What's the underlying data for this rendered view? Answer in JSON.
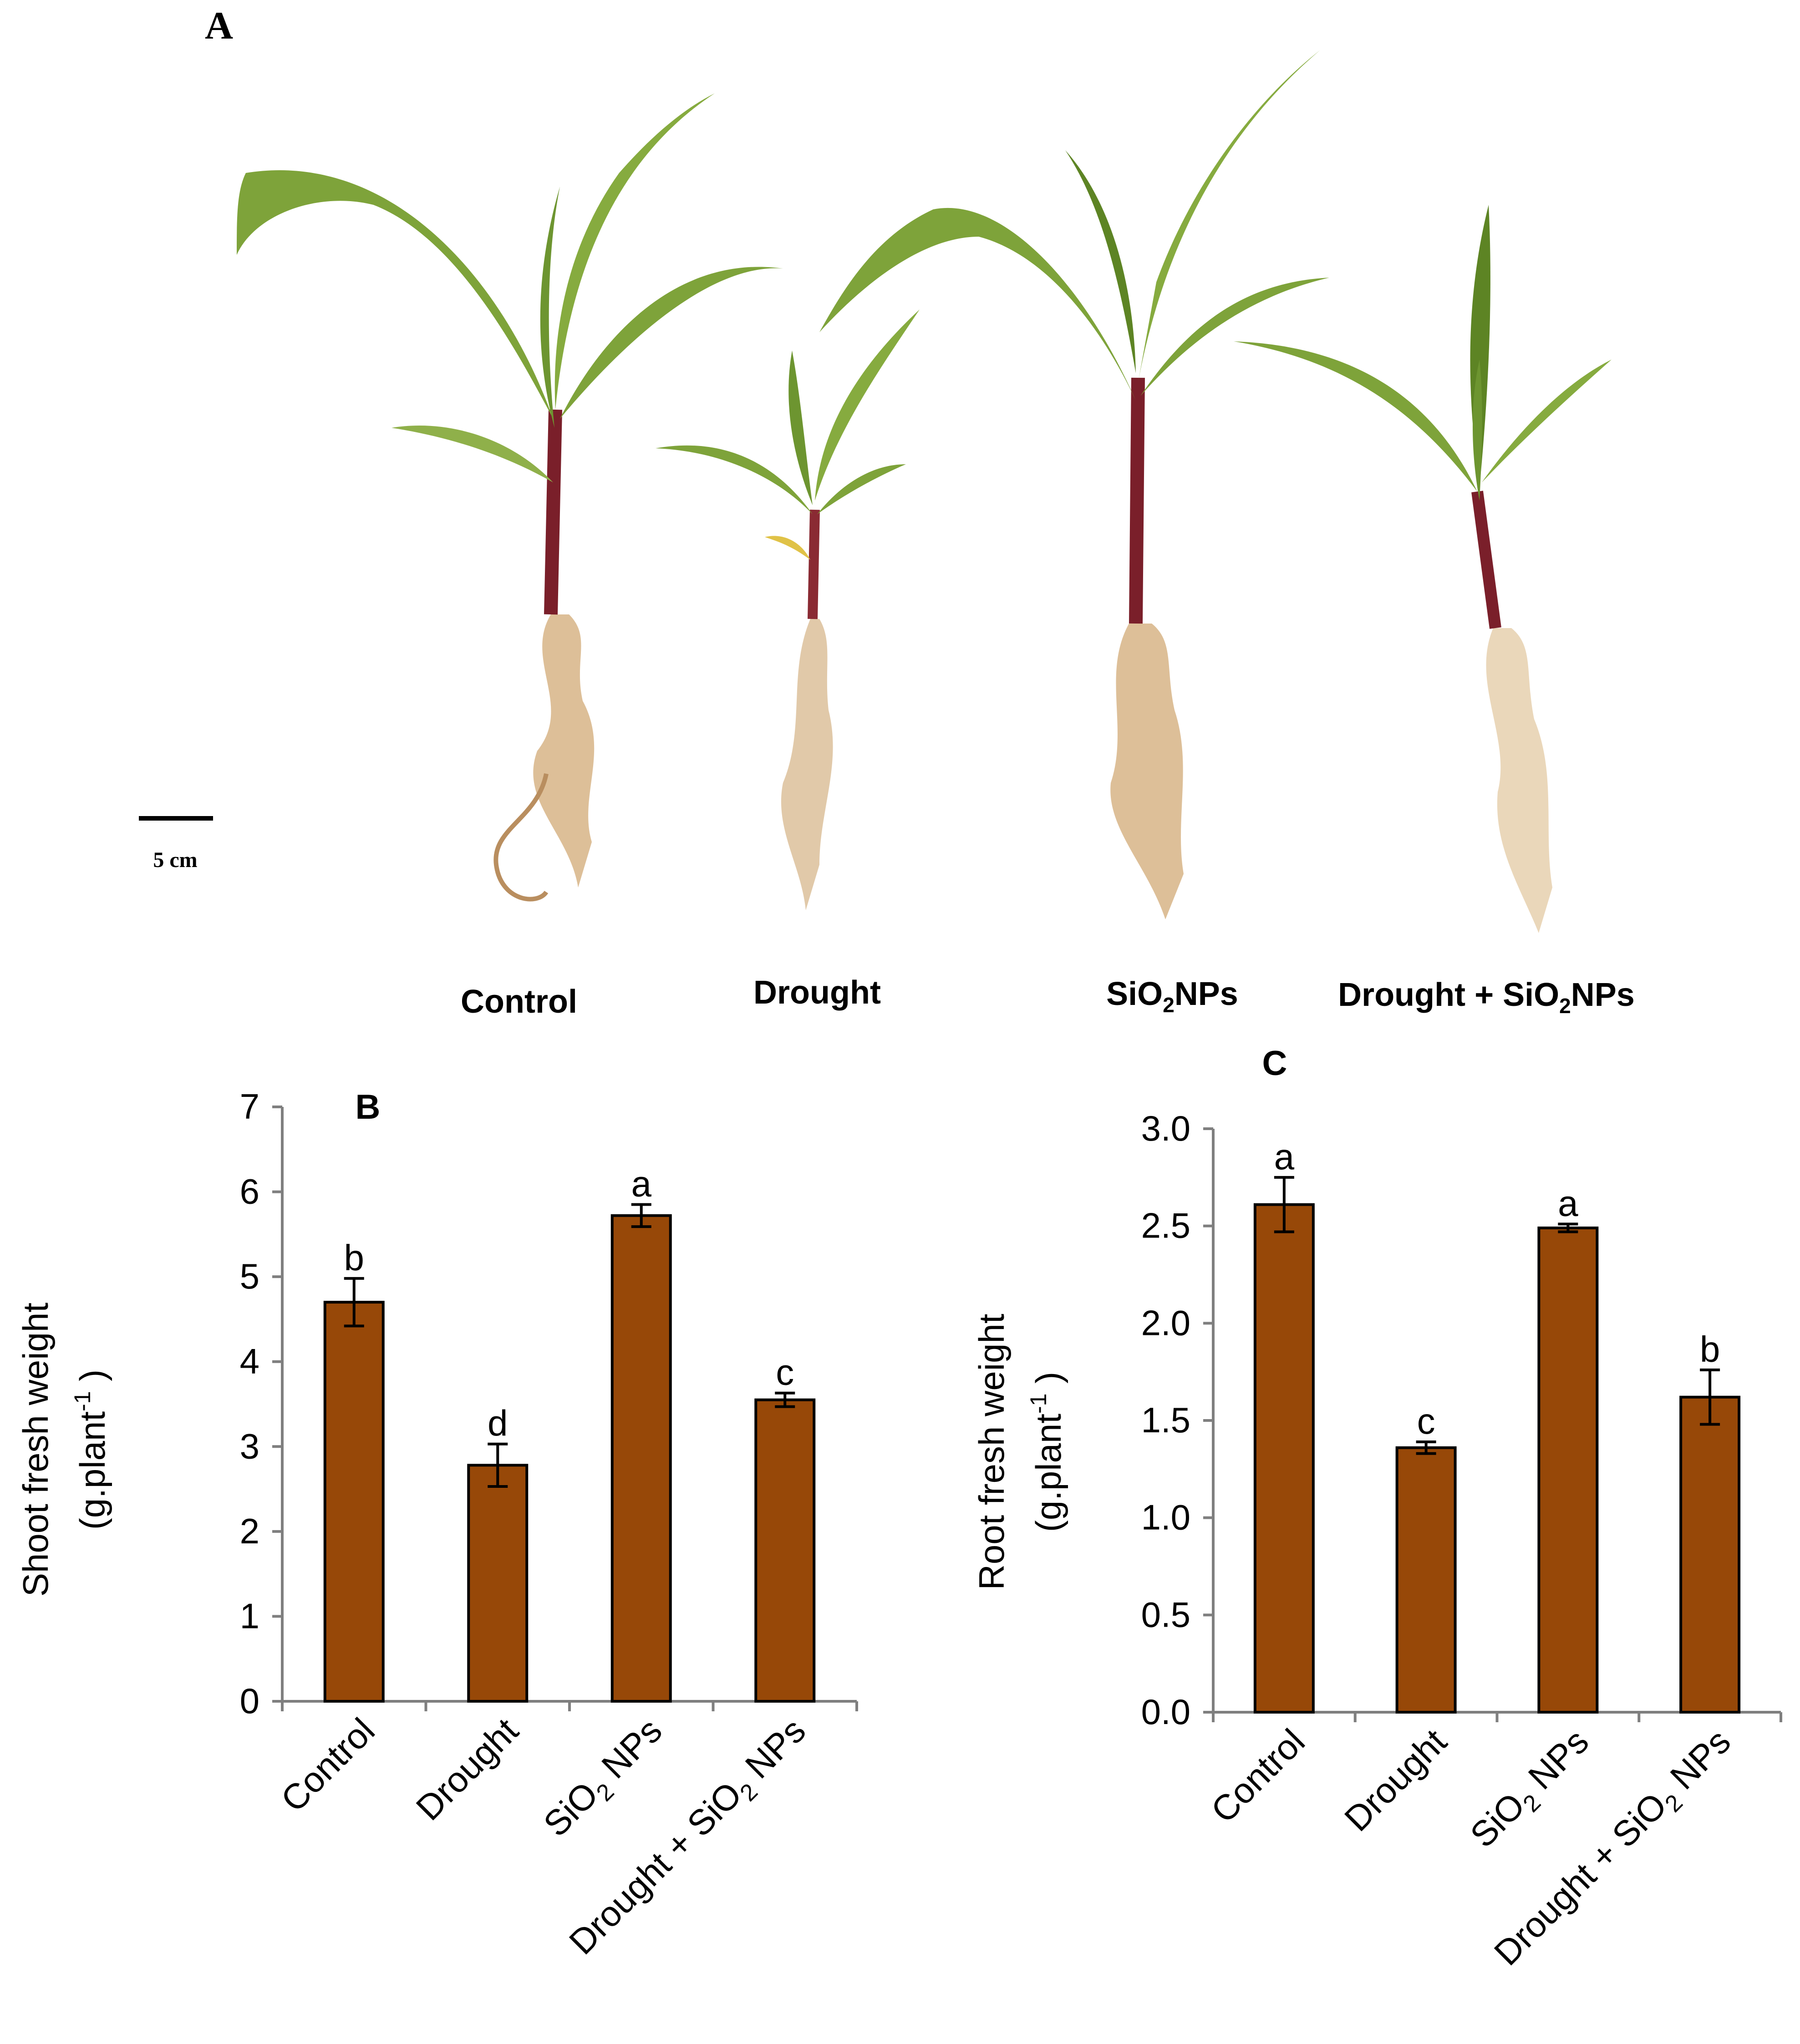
{
  "panel_a": {
    "letter": "A",
    "scale_label": "5 cm",
    "labels": [
      {
        "main": "Control"
      },
      {
        "main": "Drought"
      },
      {
        "main": "SiO",
        "sub": "2",
        "after": "NPs"
      },
      {
        "main": "Drought + SiO",
        "sub": "2",
        "after": "NPs"
      }
    ]
  },
  "colors": {
    "bar_fill": "#974808",
    "bar_stroke": "#000000",
    "leaf": "#7ea33a",
    "leaf_dark": "#5d8424",
    "stem": "#7a1f2a",
    "root": "#d9b88d"
  },
  "chart_data": [
    {
      "type": "bar",
      "panel": "B",
      "categories": [
        {
          "main": "Control"
        },
        {
          "main": "Drought"
        },
        {
          "main": "SiO",
          "sub": "2",
          "after": " NPs"
        },
        {
          "main": "Drought + SiO",
          "sub": "2",
          "after": " NPs"
        }
      ],
      "values": [
        4.7,
        2.78,
        5.72,
        3.55
      ],
      "errors": [
        0.28,
        0.25,
        0.13,
        0.08
      ],
      "letters": [
        "b",
        "d",
        "a",
        "c"
      ],
      "ylabel_line1": "Shoot fresh weight",
      "ylabel_line2_pre": "(g.plant",
      "ylabel_line2_sup": "-1",
      "ylabel_line2_post": " )",
      "ylim": [
        0,
        7
      ],
      "yticks": [
        "0",
        "1",
        "2",
        "3",
        "4",
        "5",
        "6",
        "7"
      ],
      "grid": false
    },
    {
      "type": "bar",
      "panel": "C",
      "categories": [
        {
          "main": "Control"
        },
        {
          "main": "Drought"
        },
        {
          "main": "SiO",
          "sub": "2",
          "after": " NPs"
        },
        {
          "main": "Drought + SiO",
          "sub": "2",
          "after": " NPs"
        }
      ],
      "values": [
        2.61,
        1.36,
        2.49,
        1.62
      ],
      "errors": [
        0.14,
        0.03,
        0.02,
        0.14
      ],
      "letters": [
        "a",
        "c",
        "a",
        "b"
      ],
      "ylabel_line1": "Root fresh weight",
      "ylabel_line2_pre": "(g.plant",
      "ylabel_line2_sup": "-1",
      "ylabel_line2_post": " )",
      "ylim": [
        0,
        3
      ],
      "yticks": [
        "0.0",
        "0.5",
        "1.0",
        "1.5",
        "2.0",
        "2.5",
        "3.0"
      ],
      "grid": false
    }
  ]
}
